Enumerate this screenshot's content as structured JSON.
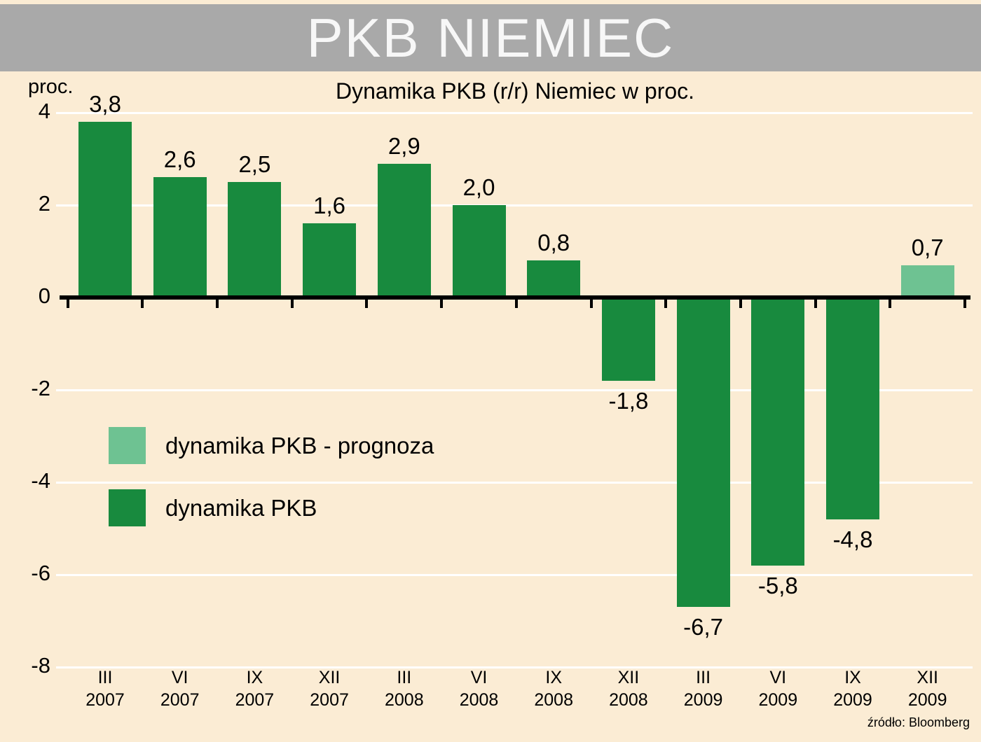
{
  "header": {
    "title": "PKB NIEMIEC"
  },
  "chart_data": {
    "type": "bar",
    "title": "Dynamika PKB (r/r) Niemiec w proc.",
    "ylabel": "proc.",
    "xlabel": "",
    "ylim": [
      -8,
      4
    ],
    "yticks": [
      4,
      2,
      0,
      -2,
      -4,
      -6,
      -8
    ],
    "grid": true,
    "colors": {
      "bar": "#188a3e",
      "forecast": "#6ec292",
      "background": "#fbecd4",
      "title_bar": "#a9a9a9",
      "gridline": "#ffffff",
      "axis": "#000000"
    },
    "legend": [
      {
        "label": "dynamika PKB - prognoza",
        "color": "forecast"
      },
      {
        "label": "dynamika PKB",
        "color": "bar"
      }
    ],
    "points": [
      {
        "period": "III",
        "year": "2007",
        "value": 3.8,
        "label": "3,8",
        "forecast": false
      },
      {
        "period": "VI",
        "year": "2007",
        "value": 2.6,
        "label": "2,6",
        "forecast": false
      },
      {
        "period": "IX",
        "year": "2007",
        "value": 2.5,
        "label": "2,5",
        "forecast": false
      },
      {
        "period": "XII",
        "year": "2007",
        "value": 1.6,
        "label": "1,6",
        "forecast": false
      },
      {
        "period": "III",
        "year": "2008",
        "value": 2.9,
        "label": "2,9",
        "forecast": false
      },
      {
        "period": "VI",
        "year": "2008",
        "value": 2.0,
        "label": "2,0",
        "forecast": false
      },
      {
        "period": "IX",
        "year": "2008",
        "value": 0.8,
        "label": "0,8",
        "forecast": false
      },
      {
        "period": "XII",
        "year": "2008",
        "value": -1.8,
        "label": "-1,8",
        "forecast": false
      },
      {
        "period": "III",
        "year": "2009",
        "value": -6.7,
        "label": "-6,7",
        "forecast": false
      },
      {
        "period": "VI",
        "year": "2009",
        "value": -5.8,
        "label": "-5,8",
        "forecast": false
      },
      {
        "period": "IX",
        "year": "2009",
        "value": -4.8,
        "label": "-4,8",
        "forecast": false
      },
      {
        "period": "XII",
        "year": "2009",
        "value": 0.7,
        "label": "0,7",
        "forecast": true
      }
    ]
  },
  "footer": {
    "source": "źródło: Bloomberg"
  }
}
